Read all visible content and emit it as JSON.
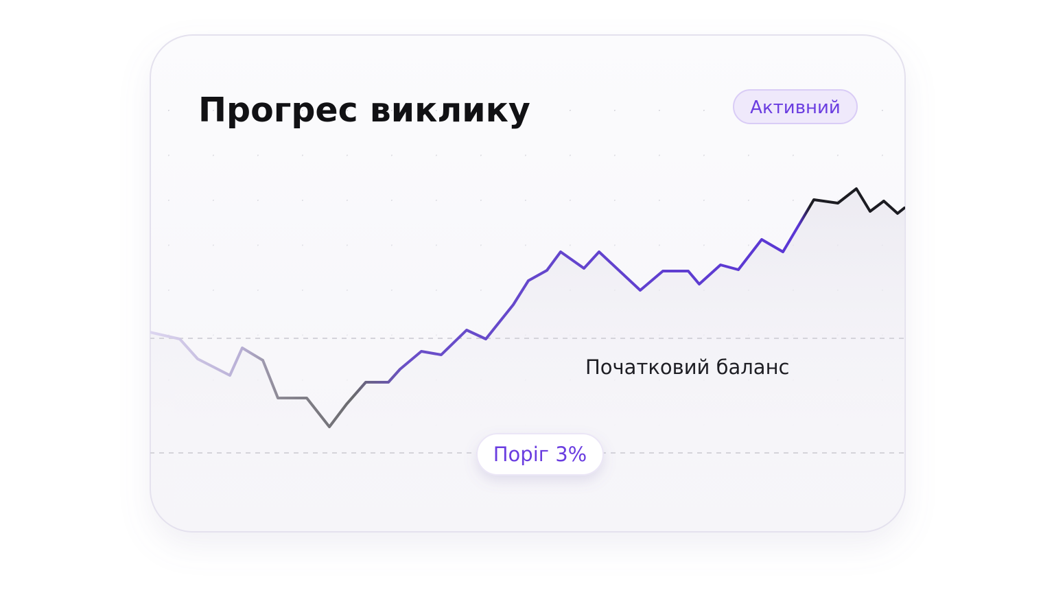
{
  "card": {
    "title": "Прогрес виклику",
    "status": "Активний",
    "baseline_label": "Початковий баланс",
    "threshold_label": "Поріг 3%"
  }
}
